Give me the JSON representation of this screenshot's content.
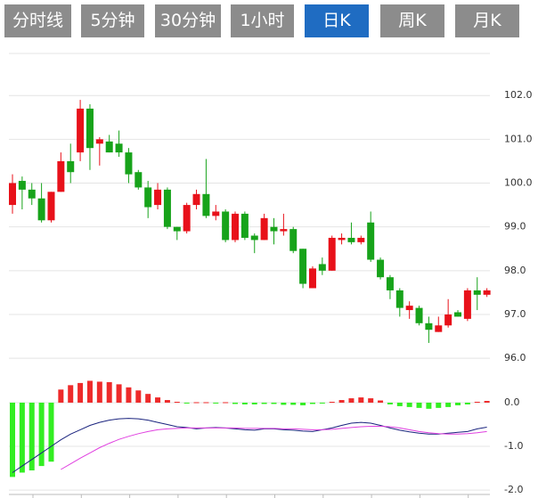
{
  "tabs": [
    "分时线",
    "5分钟",
    "30分钟",
    "1小时",
    "日K",
    "周K",
    "月K"
  ],
  "active_tab": 4,
  "chart_data": [
    {
      "type": "candlestick",
      "up_color": "#e8111a",
      "down_color": "#17a31a",
      "grid": true,
      "open": [
        99.5,
        100.05,
        99.85,
        99.65,
        99.15,
        99.8,
        100.5,
        100.7,
        101.7,
        100.9,
        100.95,
        100.9,
        100.7,
        100.25,
        99.9,
        99.5,
        99.85,
        99.0,
        98.9,
        99.5,
        99.75,
        99.25,
        99.35,
        98.7,
        99.3,
        98.8,
        98.7,
        99.0,
        98.9,
        98.95,
        98.5,
        97.6,
        98.15,
        98.0,
        98.7,
        98.75,
        98.65,
        99.1,
        98.25,
        97.85,
        97.55,
        97.1,
        97.15,
        96.8,
        96.6,
        96.75,
        97.05,
        96.9,
        97.55,
        97.45
      ],
      "high": [
        100.2,
        100.15,
        100.0,
        100.0,
        99.8,
        100.7,
        100.9,
        101.9,
        101.8,
        101.05,
        101.1,
        101.2,
        100.8,
        100.3,
        100.05,
        100.0,
        99.9,
        99.0,
        99.55,
        99.85,
        100.55,
        99.5,
        99.4,
        99.35,
        99.35,
        98.85,
        99.3,
        99.2,
        99.3,
        99.0,
        98.5,
        98.1,
        98.3,
        98.8,
        98.85,
        99.1,
        98.8,
        99.35,
        98.3,
        97.9,
        97.6,
        97.3,
        97.2,
        96.95,
        96.95,
        97.35,
        97.1,
        97.6,
        97.85,
        97.6
      ],
      "low": [
        99.3,
        99.4,
        99.5,
        99.1,
        99.1,
        99.8,
        100.0,
        100.5,
        100.3,
        100.4,
        100.7,
        100.6,
        100.0,
        99.85,
        99.2,
        99.4,
        98.95,
        98.7,
        98.85,
        99.4,
        99.2,
        99.15,
        98.65,
        98.65,
        98.7,
        98.4,
        98.7,
        98.6,
        98.8,
        98.4,
        97.6,
        97.6,
        97.9,
        98.0,
        98.6,
        98.6,
        98.6,
        98.2,
        97.8,
        97.35,
        96.95,
        96.9,
        96.75,
        96.35,
        96.6,
        96.7,
        96.95,
        96.85,
        97.1,
        97.4
      ],
      "close": [
        100.0,
        99.85,
        99.65,
        99.15,
        99.8,
        100.5,
        100.25,
        101.7,
        100.8,
        101.0,
        100.7,
        100.7,
        100.2,
        99.9,
        99.45,
        99.85,
        99.0,
        98.9,
        99.5,
        99.75,
        99.25,
        99.35,
        98.7,
        99.3,
        98.75,
        98.7,
        99.2,
        98.9,
        98.95,
        98.45,
        97.7,
        98.05,
        98.0,
        98.75,
        98.75,
        98.65,
        98.75,
        98.25,
        97.85,
        97.55,
        97.15,
        97.2,
        96.8,
        96.65,
        96.75,
        97.0,
        96.95,
        97.55,
        97.45,
        97.55
      ],
      "ylim": [
        95.84,
        102.96
      ],
      "yticks": [
        {
          "value": 102,
          "label": "102.0"
        },
        {
          "value": 101,
          "label": "101.0"
        },
        {
          "value": 100,
          "label": "100.0"
        },
        {
          "value": 99,
          "label": "99.0"
        },
        {
          "value": 98,
          "label": "98.0"
        },
        {
          "value": 97,
          "label": "97.0"
        },
        {
          "value": 96,
          "label": "96.0"
        }
      ]
    },
    {
      "type": "macd",
      "histogram": {
        "up_color": "#ee2a2a",
        "down_color": "#33ee22",
        "values": [
          -1.7,
          -1.6,
          -1.55,
          -1.45,
          -1.35,
          0.3,
          0.4,
          0.45,
          0.5,
          0.48,
          0.47,
          0.42,
          0.35,
          0.28,
          0.2,
          0.12,
          0.06,
          0.02,
          -0.02,
          0.01,
          0.01,
          -0.01,
          0.01,
          -0.03,
          -0.04,
          -0.04,
          -0.03,
          -0.03,
          -0.05,
          -0.05,
          -0.06,
          -0.03,
          -0.02,
          0.02,
          0.06,
          0.1,
          0.12,
          0.1,
          0.05,
          -0.04,
          -0.08,
          -0.1,
          -0.12,
          -0.14,
          -0.12,
          -0.1,
          -0.06,
          -0.04,
          0.02,
          0.04
        ]
      },
      "dif": {
        "color": "#1a237e",
        "values": [
          -1.6,
          -1.45,
          -1.3,
          -1.15,
          -1.0,
          -0.85,
          -0.72,
          -0.62,
          -0.52,
          -0.45,
          -0.4,
          -0.37,
          -0.36,
          -0.37,
          -0.4,
          -0.45,
          -0.5,
          -0.55,
          -0.57,
          -0.6,
          -0.58,
          -0.57,
          -0.58,
          -0.6,
          -0.62,
          -0.63,
          -0.6,
          -0.6,
          -0.62,
          -0.63,
          -0.65,
          -0.66,
          -0.62,
          -0.58,
          -0.52,
          -0.47,
          -0.45,
          -0.47,
          -0.52,
          -0.58,
          -0.63,
          -0.67,
          -0.7,
          -0.72,
          -0.72,
          -0.7,
          -0.68,
          -0.66,
          -0.6,
          -0.56
        ]
      },
      "dea": {
        "color": "#e040e0",
        "values": [
          null,
          null,
          null,
          null,
          null,
          -1.53,
          -1.4,
          -1.27,
          -1.15,
          -1.03,
          -0.93,
          -0.84,
          -0.77,
          -0.71,
          -0.66,
          -0.62,
          -0.6,
          -0.59,
          -0.58,
          -0.58,
          -0.58,
          -0.58,
          -0.58,
          -0.58,
          -0.59,
          -0.59,
          -0.59,
          -0.59,
          -0.6,
          -0.6,
          -0.61,
          -0.62,
          -0.62,
          -0.61,
          -0.59,
          -0.57,
          -0.55,
          -0.54,
          -0.54,
          -0.55,
          -0.58,
          -0.62,
          -0.66,
          -0.69,
          -0.71,
          -0.72,
          -0.72,
          -0.71,
          -0.69,
          -0.66
        ]
      },
      "ylim": [
        -2.1,
        0.55
      ],
      "yticks": [
        {
          "value": 0,
          "label": "0.0"
        },
        {
          "value": -1,
          "label": "-1.0"
        },
        {
          "value": -2,
          "label": "-2.0"
        }
      ]
    }
  ]
}
